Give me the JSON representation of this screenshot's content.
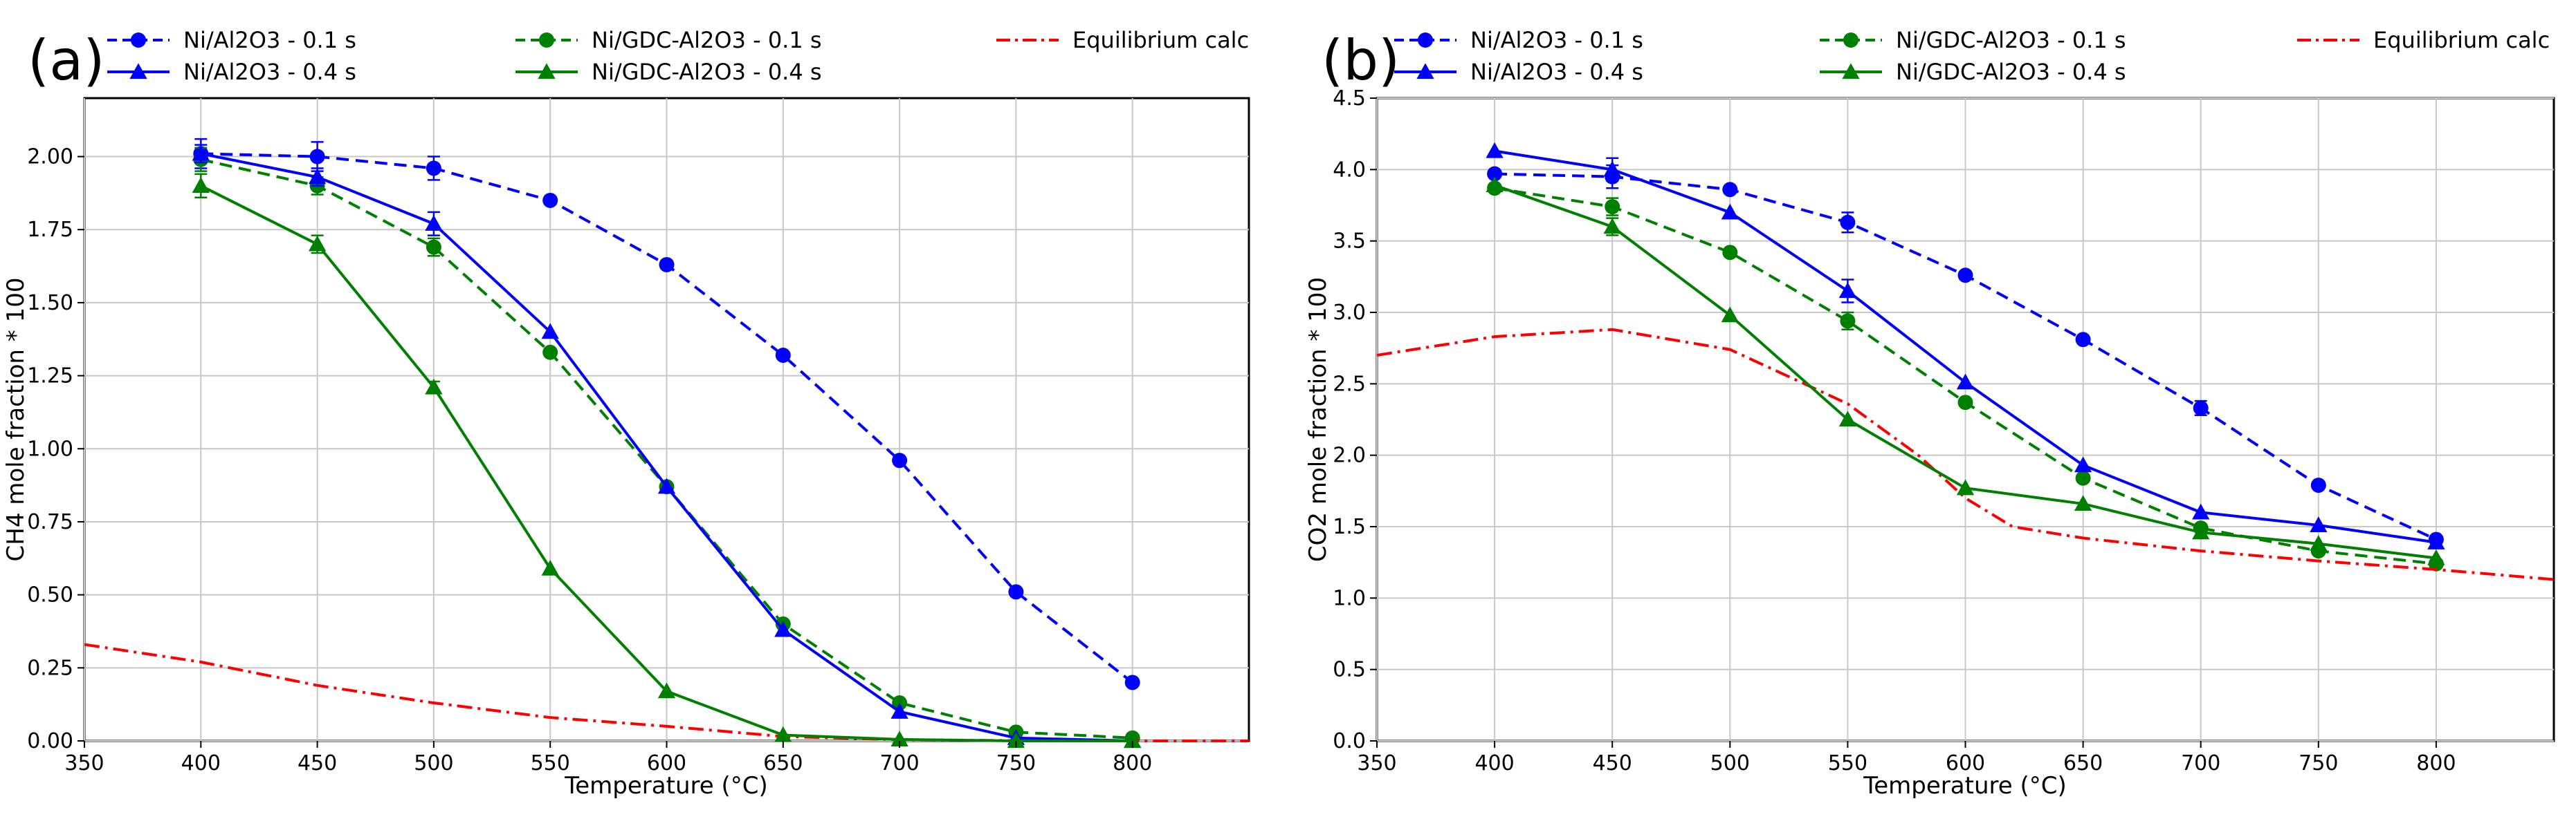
{
  "colors": {
    "blue": "#0000ff",
    "green": "#008000",
    "red": "#ff0000"
  },
  "chart_data": [
    {
      "type": "line",
      "panel_label": "(a)",
      "xlabel": "Temperature (°C)",
      "ylabel": "CH4 mole fraction * 100",
      "xlim": [
        350,
        850
      ],
      "ylim": [
        0,
        2.2
      ],
      "xticks": [
        350,
        400,
        450,
        500,
        550,
        600,
        650,
        700,
        750,
        800
      ],
      "yticks": [
        0,
        0.25,
        0.5,
        0.75,
        1.0,
        1.25,
        1.5,
        1.75,
        2.0
      ],
      "ytick_labels": [
        "0.00",
        "0.25",
        "0.50",
        "0.75",
        "1.00",
        "1.25",
        "1.50",
        "1.75",
        "2.00"
      ],
      "grid": true,
      "legend_location": "top",
      "series": [
        {
          "name": "Ni/Al2O3 - 0.1 s",
          "color": "blue",
          "linestyle": "dashed",
          "marker": "circle",
          "x": [
            400,
            450,
            500,
            550,
            600,
            650,
            700,
            750,
            800
          ],
          "y": [
            2.01,
            2.0,
            1.96,
            1.85,
            1.63,
            1.32,
            0.96,
            0.51,
            0.2
          ],
          "err": [
            0.05,
            0.05,
            0.04,
            0.0,
            0.0,
            0.0,
            0.0,
            0.0,
            0.0
          ]
        },
        {
          "name": "Ni/GDC-Al2O3 - 0.1 s",
          "color": "green",
          "linestyle": "dashed",
          "marker": "circle",
          "x": [
            400,
            450,
            500,
            550,
            600,
            650,
            700,
            750,
            800
          ],
          "y": [
            1.99,
            1.9,
            1.69,
            1.33,
            0.87,
            0.4,
            0.13,
            0.03,
            0.01
          ],
          "err": [
            0.04,
            0.03,
            0.03,
            0.0,
            0.0,
            0.0,
            0.0,
            0.0,
            0.0
          ]
        },
        {
          "name": "Equilibrium calc",
          "color": "red",
          "linestyle": "dashdot",
          "marker": "none",
          "x": [
            350,
            400,
            450,
            500,
            550,
            600,
            650,
            700,
            750,
            800,
            850
          ],
          "y": [
            0.33,
            0.27,
            0.19,
            0.13,
            0.08,
            0.05,
            0.015,
            0.004,
            0.001,
            0.0,
            0.0
          ],
          "err": []
        },
        {
          "name": "Ni/Al2O3 - 0.4 s",
          "color": "blue",
          "linestyle": "solid",
          "marker": "triangle",
          "x": [
            400,
            450,
            500,
            550,
            600,
            650,
            700,
            750,
            800
          ],
          "y": [
            2.01,
            1.93,
            1.77,
            1.4,
            0.87,
            0.38,
            0.1,
            0.01,
            0.0
          ],
          "err": [
            0.03,
            0.03,
            0.04,
            0.0,
            0.0,
            0.0,
            0.0,
            0.0,
            0.0
          ]
        },
        {
          "name": "Ni/GDC-Al2O3 - 0.4 s",
          "color": "green",
          "linestyle": "solid",
          "marker": "triangle",
          "x": [
            400,
            450,
            500,
            550,
            600,
            650,
            700,
            750,
            800
          ],
          "y": [
            1.9,
            1.7,
            1.21,
            0.59,
            0.17,
            0.02,
            0.005,
            0.0,
            0.0
          ],
          "err": [
            0.04,
            0.03,
            0.02,
            0.0,
            0.0,
            0.0,
            0.0,
            0.0,
            0.0
          ]
        }
      ]
    },
    {
      "type": "line",
      "panel_label": "(b)",
      "xlabel": "Temperature (°C)",
      "ylabel": "CO2 mole fraction * 100",
      "xlim": [
        350,
        850
      ],
      "ylim": [
        0,
        4.5
      ],
      "xticks": [
        350,
        400,
        450,
        500,
        550,
        600,
        650,
        700,
        750,
        800
      ],
      "yticks": [
        0,
        0.5,
        1.0,
        1.5,
        2.0,
        2.5,
        3.0,
        3.5,
        4.0,
        4.5
      ],
      "ytick_labels": [
        "0.0",
        "0.5",
        "1.0",
        "1.5",
        "2.0",
        "2.5",
        "3.0",
        "3.5",
        "4.0",
        "4.5"
      ],
      "grid": true,
      "legend_location": "top",
      "series": [
        {
          "name": "Ni/Al2O3 - 0.1 s",
          "color": "blue",
          "linestyle": "dashed",
          "marker": "circle",
          "x": [
            400,
            450,
            500,
            550,
            600,
            650,
            700,
            750,
            800
          ],
          "y": [
            3.97,
            3.95,
            3.86,
            3.63,
            3.26,
            2.81,
            2.33,
            1.79,
            1.41
          ],
          "err": [
            0.0,
            0.08,
            0.0,
            0.07,
            0.0,
            0.0,
            0.05,
            0.0,
            0.0
          ]
        },
        {
          "name": "Ni/GDC-Al2O3 - 0.1 s",
          "color": "green",
          "linestyle": "dashed",
          "marker": "circle",
          "x": [
            400,
            450,
            500,
            550,
            600,
            650,
            700,
            750,
            800
          ],
          "y": [
            3.87,
            3.74,
            3.42,
            2.94,
            2.37,
            1.84,
            1.49,
            1.33,
            1.24
          ],
          "err": [
            0.0,
            0.06,
            0.0,
            0.06,
            0.0,
            0.0,
            0.0,
            0.0,
            0.0
          ]
        },
        {
          "name": "Equilibrium calc",
          "color": "red",
          "linestyle": "dashdot",
          "marker": "none",
          "x": [
            350,
            400,
            450,
            500,
            550,
            580,
            600,
            620,
            650,
            700,
            750,
            800,
            850
          ],
          "y": [
            2.7,
            2.83,
            2.88,
            2.74,
            2.36,
            2.0,
            1.7,
            1.5,
            1.42,
            1.33,
            1.26,
            1.2,
            1.13
          ],
          "err": []
        },
        {
          "name": "Ni/Al2O3 - 0.4 s",
          "color": "blue",
          "linestyle": "solid",
          "marker": "triangle",
          "x": [
            400,
            450,
            500,
            550,
            600,
            650,
            700,
            750,
            800
          ],
          "y": [
            4.13,
            4.0,
            3.7,
            3.15,
            2.51,
            1.93,
            1.6,
            1.51,
            1.39
          ],
          "err": [
            0.0,
            0.08,
            0.0,
            0.08,
            0.0,
            0.0,
            0.0,
            0.0,
            0.0
          ]
        },
        {
          "name": "Ni/GDC-Al2O3 - 0.4 s",
          "color": "green",
          "linestyle": "solid",
          "marker": "triangle",
          "x": [
            400,
            450,
            500,
            550,
            600,
            650,
            700,
            750,
            800
          ],
          "y": [
            3.89,
            3.6,
            2.98,
            2.25,
            1.77,
            1.66,
            1.46,
            1.38,
            1.28
          ],
          "err": [
            0.0,
            0.06,
            0.0,
            0.0,
            0.0,
            0.0,
            0.0,
            0.0,
            0.0
          ]
        }
      ]
    }
  ]
}
